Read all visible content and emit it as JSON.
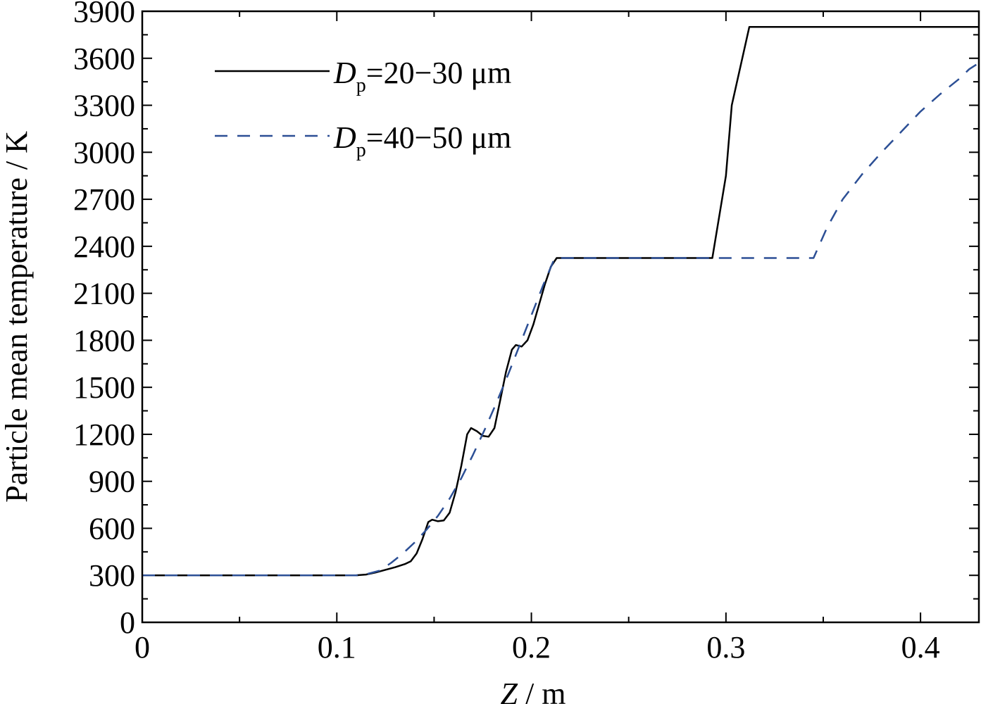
{
  "chart_data": {
    "type": "line",
    "title": "",
    "xlabel": {
      "symbol": "Z",
      "unit": " / m"
    },
    "ylabel": "Particle mean temperature / K",
    "xlim": [
      0,
      0.43
    ],
    "ylim": [
      0,
      3900
    ],
    "x_ticks": [
      0,
      0.1,
      0.2,
      0.3,
      0.4
    ],
    "x_tick_labels": [
      "0",
      "0.1",
      "0.2",
      "0.3",
      "0.4"
    ],
    "y_ticks": [
      0,
      300,
      600,
      900,
      1200,
      1500,
      1800,
      2100,
      2400,
      2700,
      3000,
      3300,
      3600,
      3900
    ],
    "y_tick_labels": [
      "0",
      "300",
      "600",
      "900",
      "1200",
      "1500",
      "1800",
      "2100",
      "2400",
      "2700",
      "3000",
      "3300",
      "3600",
      "3900"
    ],
    "grid": false,
    "legend_position": "top-left",
    "series": [
      {
        "name": "Dp=20−30 μm",
        "label_parts": {
          "symbol": "D",
          "sub": "p",
          "text": "=20−30 μm"
        },
        "color": "#000000",
        "dash": "solid",
        "points": [
          [
            0,
            300
          ],
          [
            0.11,
            300
          ],
          [
            0.115,
            305
          ],
          [
            0.12,
            318
          ],
          [
            0.125,
            335
          ],
          [
            0.13,
            352
          ],
          [
            0.135,
            372
          ],
          [
            0.138,
            390
          ],
          [
            0.141,
            440
          ],
          [
            0.144,
            530
          ],
          [
            0.147,
            640
          ],
          [
            0.149,
            655
          ],
          [
            0.152,
            645
          ],
          [
            0.155,
            650
          ],
          [
            0.158,
            700
          ],
          [
            0.161,
            830
          ],
          [
            0.164,
            1000
          ],
          [
            0.167,
            1200
          ],
          [
            0.169,
            1240
          ],
          [
            0.172,
            1220
          ],
          [
            0.175,
            1190
          ],
          [
            0.178,
            1185
          ],
          [
            0.181,
            1240
          ],
          [
            0.184,
            1420
          ],
          [
            0.187,
            1600
          ],
          [
            0.19,
            1740
          ],
          [
            0.192,
            1770
          ],
          [
            0.195,
            1760
          ],
          [
            0.198,
            1800
          ],
          [
            0.201,
            1900
          ],
          [
            0.204,
            2030
          ],
          [
            0.207,
            2160
          ],
          [
            0.21,
            2270
          ],
          [
            0.213,
            2325
          ],
          [
            0.293,
            2325
          ],
          [
            0.3,
            2850
          ],
          [
            0.303,
            3300
          ],
          [
            0.312,
            3800
          ],
          [
            0.43,
            3800
          ]
        ]
      },
      {
        "name": "Dp=40−50 μm",
        "label_parts": {
          "symbol": "D",
          "sub": "p",
          "text": "=40−50 μm"
        },
        "color": "#2c4f95",
        "dash": "dashed",
        "points": [
          [
            0,
            300
          ],
          [
            0.11,
            300
          ],
          [
            0.116,
            310
          ],
          [
            0.122,
            330
          ],
          [
            0.128,
            380
          ],
          [
            0.134,
            440
          ],
          [
            0.14,
            510
          ],
          [
            0.146,
            590
          ],
          [
            0.152,
            680
          ],
          [
            0.158,
            790
          ],
          [
            0.164,
            920
          ],
          [
            0.17,
            1070
          ],
          [
            0.176,
            1230
          ],
          [
            0.182,
            1400
          ],
          [
            0.188,
            1580
          ],
          [
            0.194,
            1770
          ],
          [
            0.2,
            1960
          ],
          [
            0.206,
            2150
          ],
          [
            0.212,
            2325
          ],
          [
            0.345,
            2325
          ],
          [
            0.352,
            2520
          ],
          [
            0.36,
            2700
          ],
          [
            0.37,
            2860
          ],
          [
            0.38,
            3000
          ],
          [
            0.39,
            3130
          ],
          [
            0.4,
            3260
          ],
          [
            0.41,
            3370
          ],
          [
            0.42,
            3470
          ],
          [
            0.425,
            3530
          ],
          [
            0.43,
            3570
          ]
        ]
      }
    ]
  }
}
